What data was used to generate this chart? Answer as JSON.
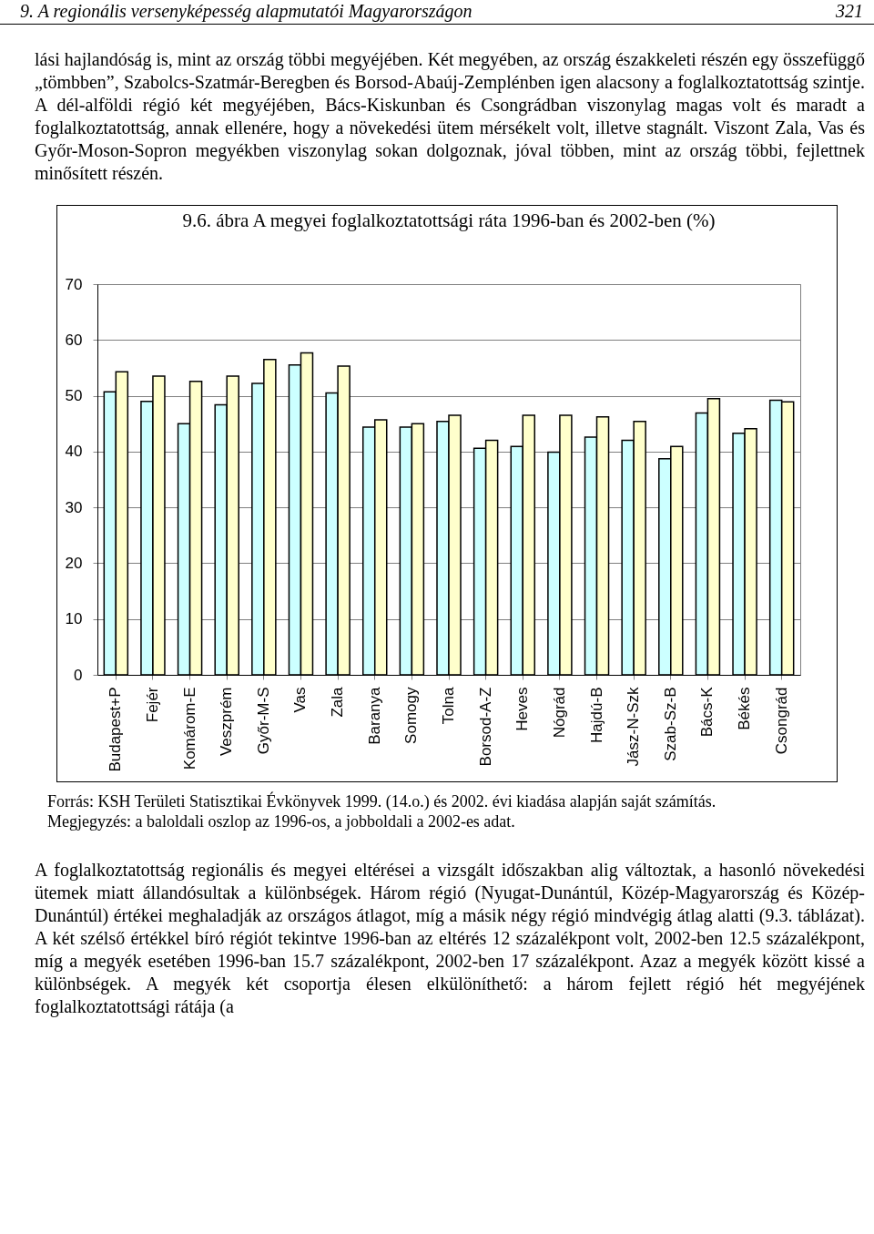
{
  "chart_data": {
    "type": "bar",
    "title": "9.6. ábra A megyei foglalkoztatottsági ráta 1996-ban és 2002-ben (%)",
    "categories": [
      "Budapest+P",
      "Fejér",
      "Komárom-E",
      "Veszprém",
      "Győr-M-S",
      "Vas",
      "Zala",
      "Baranya",
      "Somogy",
      "Tolna",
      "Borsod-A-Z",
      "Heves",
      "Nógrád",
      "Hajdú-B",
      "Jász-N-Szk",
      "Szab-Sz-B",
      "Bács-K",
      "Békés",
      "Csongrád"
    ],
    "series": [
      {
        "color": "#ccffff",
        "values": [
          50.7,
          49.0,
          45.0,
          48.4,
          52.2,
          55.5,
          50.5,
          44.4,
          44.4,
          45.4,
          40.6,
          40.9,
          39.9,
          42.6,
          42.0,
          38.7,
          46.9,
          43.3,
          49.2
        ]
      },
      {
        "color": "#ffffcc",
        "values": [
          54.3,
          53.5,
          52.6,
          53.5,
          56.5,
          57.7,
          55.3,
          45.7,
          45.0,
          46.5,
          42.0,
          46.5,
          46.5,
          46.2,
          45.4,
          40.9,
          49.5,
          44.1,
          48.9
        ]
      }
    ],
    "ylim": [
      0,
      70
    ],
    "yticks": [
      0,
      10,
      20,
      30,
      40,
      50,
      60,
      70
    ],
    "grid": "y",
    "legend": false,
    "annotations": [
      "9. A regionális versenyképesség alapmutatói Magyarországon",
      "321",
      "lási hajlandóság is, mint az ország többi megyéjében. Két megyében, az ország északkeleti részén egy összefüggő „tömbben”, Szabolcs-Szatmár-Beregben és Borsod-Abaúj-Zemplénben igen alacsony a foglalkoztatottság szintje. A dél-alföldi régió két megyéjében, Bács-Kiskunban és Csongrádban viszonylag magas volt és maradt a foglalkoztatottság, annak ellenére, hogy a növekedési ütem mérsékelt volt, illetve stagnált. Viszont Zala, Vas és Győr-Moson-Sopron megyékben viszonylag sokan dolgoznak, jóval többen, mint az ország többi, fejlettnek minősített részén.",
      "Forrás: KSH Területi Statisztikai Évkönyvek 1999. (14.o.) és 2002. évi kiadása alapján saját számítás.",
      "Megjegyzés: a baloldali oszlop az 1996-os, a jobboldali a 2002-es adat.",
      "A foglalkoztatottság regionális és megyei eltérései a vizsgált időszakban alig változtak, a hasonló növekedési ütemek miatt állandósultak a különbségek. Három régió (Nyugat-Dunántúl, Közép-Magyarország és Közép-Dunántúl) értékei meghaladják az országos átlagot, míg a másik négy régió mindvégig átlag alatti (9.3. táblázat). A két szélső értékkel bíró régiót tekintve 1996-ban az eltérés 12 százalékpont volt, 2002-ben 12.5 százalékpont, míg a megyék esetében 1996-ban 15.7 százalékpont, 2002-ben 17 százalékpont. Azaz a megyék között kissé a különbségek. A megyék két csoportja élesen elkülöníthető: a három fejlett régió hét megyéjének foglalkoztatottsági rátája (a"
    ]
  }
}
